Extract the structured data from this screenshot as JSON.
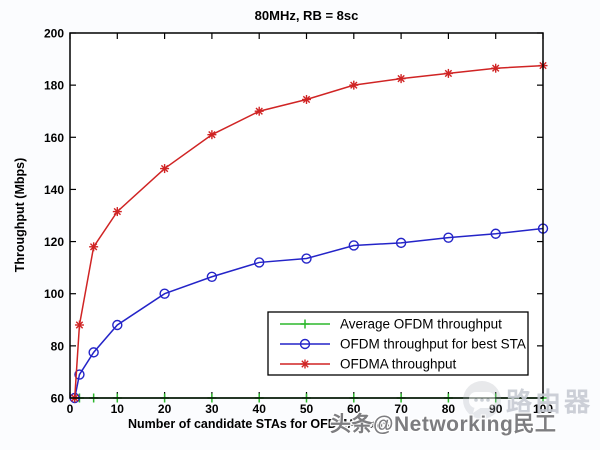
{
  "chart_data": {
    "type": "line",
    "title": "80MHz, RB = 8sc",
    "xlabel": "Number of candidate STAs for OFDMA trans",
    "ylabel": "Throughput (Mbps)",
    "xlim": [
      0,
      100
    ],
    "ylim": [
      60,
      200
    ],
    "xticks": [
      0,
      10,
      20,
      30,
      40,
      50,
      60,
      70,
      80,
      90,
      100
    ],
    "yticks": [
      60,
      80,
      100,
      120,
      140,
      160,
      180,
      200
    ],
    "grid": false,
    "legend_position": "inside lower right",
    "x": [
      1,
      2,
      5,
      10,
      20,
      30,
      40,
      50,
      60,
      70,
      80,
      90,
      100
    ],
    "series": [
      {
        "name": "Average OFDM throughput",
        "color": "#2db82d",
        "marker": "plus",
        "values": [
          60,
          60,
          60,
          60,
          60,
          60,
          60,
          60,
          60,
          60,
          60,
          60,
          60
        ]
      },
      {
        "name": "OFDM throughput for best STA",
        "color": "#2424c8",
        "marker": "circle",
        "values": [
          60,
          69,
          77.5,
          88,
          100,
          106.5,
          112,
          113.5,
          118.5,
          119.5,
          121.5,
          123,
          125
        ]
      },
      {
        "name": "OFDMA throughput",
        "color": "#d02424",
        "marker": "asterisk",
        "values": [
          60,
          88,
          118,
          131.5,
          148,
          161,
          170,
          174.5,
          180,
          182.5,
          184.5,
          186.5,
          187.5
        ]
      }
    ],
    "axis_color": "#000000",
    "background": "#fbfcfe"
  },
  "watermarks": {
    "bottom_text": "头条@Networking民工",
    "side_text": "路由器",
    "chat_icon": "comment-bubble-icon"
  }
}
